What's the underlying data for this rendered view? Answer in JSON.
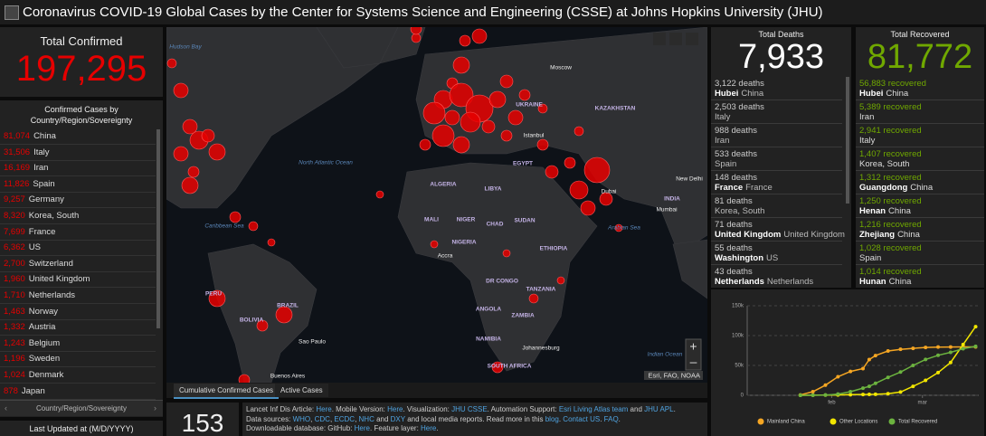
{
  "header": {
    "title": "Coronavirus COVID-19 Global Cases by the Center for Systems Science and Engineering (CSSE) at Johns Hopkins University (JHU)"
  },
  "confirmed": {
    "label": "Total Confirmed",
    "value": "197,295",
    "list_title": "Confirmed Cases by Country/Region/Sovereignty",
    "rows": [
      {
        "count": "81,074",
        "name": "China"
      },
      {
        "count": "31,506",
        "name": "Italy"
      },
      {
        "count": "16,169",
        "name": "Iran"
      },
      {
        "count": "11,826",
        "name": "Spain"
      },
      {
        "count": "9,257",
        "name": "Germany"
      },
      {
        "count": "8,320",
        "name": "Korea, South"
      },
      {
        "count": "7,699",
        "name": "France"
      },
      {
        "count": "6,362",
        "name": "US"
      },
      {
        "count": "2,700",
        "name": "Switzerland"
      },
      {
        "count": "1,960",
        "name": "United Kingdom"
      },
      {
        "count": "1,710",
        "name": "Netherlands"
      },
      {
        "count": "1,463",
        "name": "Norway"
      },
      {
        "count": "1,332",
        "name": "Austria"
      },
      {
        "count": "1,243",
        "name": "Belgium"
      },
      {
        "count": "1,196",
        "name": "Sweden"
      },
      {
        "count": "1,024",
        "name": "Denmark"
      },
      {
        "count": "878",
        "name": "Japan"
      }
    ],
    "tab": "Country/Region/Sovereignty"
  },
  "last_updated": "Last Updated at (M/D/YYYY)",
  "map": {
    "labels": [
      "Hudson Bay",
      "Moscow",
      "North Atlantic Ocean",
      "Arabian Sea",
      "Indian Ocean",
      "BRAZIL",
      "Sao Paulo",
      "Johannesburg",
      "Accra",
      "Buenos Aires",
      "Dubai",
      "INDIA",
      "New Delhi",
      "Mumbai",
      "KAZAKHSTAN",
      "UKRAINE",
      "LIBYA",
      "ALGERIA",
      "MALI",
      "NIGER",
      "CHAD",
      "SUDAN",
      "NIGERIA",
      "ETHIOPIA",
      "DR CONGO",
      "TANZANIA",
      "ANGOLA",
      "ZAMBIA",
      "NAMIBIA",
      "SOUTH AFRICA",
      "PERU",
      "BOLIVIA",
      "Caribbean Sea",
      "Istanbul",
      "EGYPT"
    ],
    "tabs": [
      "Cumulative Confirmed Cases",
      "Active Cases"
    ],
    "attribution": "Esri, FAO, NOAA",
    "zoom_in": "+",
    "zoom_out": "–"
  },
  "countries_count": "153",
  "info": {
    "lines": [
      [
        {
          "text": "Lancet Inf Dis Article: "
        },
        {
          "text": "Here",
          "link": true
        },
        {
          "text": ". Mobile Version: "
        },
        {
          "text": "Here",
          "link": true
        },
        {
          "text": ". Visualization: "
        },
        {
          "text": "JHU CSSE",
          "link": true
        },
        {
          "text": ". Automation Support: "
        },
        {
          "text": "Esri Living Atlas team",
          "link": true
        },
        {
          "text": " and "
        },
        {
          "text": "JHU APL",
          "link": true
        },
        {
          "text": "."
        }
      ],
      [
        {
          "text": "Data sources: "
        },
        {
          "text": "WHO",
          "link": true
        },
        {
          "text": ", "
        },
        {
          "text": "CDC",
          "link": true
        },
        {
          "text": ", "
        },
        {
          "text": "ECDC",
          "link": true
        },
        {
          "text": ", "
        },
        {
          "text": "NHC",
          "link": true
        },
        {
          "text": " and "
        },
        {
          "text": "DXY",
          "link": true
        },
        {
          "text": " and local media reports. Read more in this "
        },
        {
          "text": "blog",
          "link": true
        },
        {
          "text": ". "
        },
        {
          "text": "Contact US",
          "link": true
        },
        {
          "text": ". "
        },
        {
          "text": "FAQ",
          "link": true
        },
        {
          "text": "."
        }
      ],
      [
        {
          "text": "Downloadable database: GitHub: "
        },
        {
          "text": "Here",
          "link": true
        },
        {
          "text": ". Feature layer: "
        },
        {
          "text": "Here",
          "link": true
        },
        {
          "text": "."
        }
      ]
    ]
  },
  "deaths": {
    "label": "Total Deaths",
    "value": "7,933",
    "rows": [
      {
        "count": "3,122 deaths",
        "place": "Hubei",
        "country": "China"
      },
      {
        "count": "2,503 deaths",
        "country": "Italy"
      },
      {
        "count": "988 deaths",
        "country": "Iran"
      },
      {
        "count": "533 deaths",
        "country": "Spain"
      },
      {
        "count": "148 deaths",
        "place": "France",
        "country": "France"
      },
      {
        "count": "81 deaths",
        "country": "Korea, South"
      },
      {
        "count": "71 deaths",
        "place": "United Kingdom",
        "country": "United Kingdom"
      },
      {
        "count": "55 deaths",
        "place": "Washington",
        "country": "US"
      },
      {
        "count": "43 deaths",
        "place": "Netherlands",
        "country": "Netherlands"
      }
    ]
  },
  "recovered": {
    "label": "Total Recovered",
    "value": "81,772",
    "rows": [
      {
        "count": "56,883 recovered",
        "place": "Hubei",
        "country": "China"
      },
      {
        "count": "5,389 recovered",
        "country": "Iran"
      },
      {
        "count": "2,941 recovered",
        "country": "Italy"
      },
      {
        "count": "1,407 recovered",
        "country": "Korea, South"
      },
      {
        "count": "1,312 recovered",
        "place": "Guangdong",
        "country": "China"
      },
      {
        "count": "1,250 recovered",
        "place": "Henan",
        "country": "China"
      },
      {
        "count": "1,216 recovered",
        "place": "Zhejiang",
        "country": "China"
      },
      {
        "count": "1,028 recovered",
        "country": "Spain"
      },
      {
        "count": "1,014 recovered",
        "place": "Hunan",
        "country": "China"
      }
    ]
  },
  "chart": {
    "type": "line",
    "x": [
      0,
      4,
      8,
      12,
      16,
      20,
      22,
      24,
      28,
      32,
      36,
      40,
      44,
      48,
      52,
      56
    ],
    "xlim": [
      -17,
      57
    ],
    "xticks": [
      {
        "value": 10,
        "label": "feb"
      },
      {
        "value": 39,
        "label": "mar"
      }
    ],
    "ylim": [
      0,
      150000
    ],
    "yticks": [
      {
        "value": 0,
        "label": "0"
      },
      {
        "value": 50000,
        "label": "50k"
      },
      {
        "value": 100000,
        "label": "100k"
      },
      {
        "value": 150000,
        "label": "150k"
      }
    ],
    "grid": true,
    "series": [
      {
        "name": "Mainland China",
        "color": "#f5a623",
        "values": [
          548,
          6000,
          17000,
          31000,
          40000,
          44700,
          59800,
          66500,
          74200,
          77000,
          78600,
          80200,
          80800,
          80900,
          81000,
          81100
        ]
      },
      {
        "name": "Other Locations",
        "color": "#f2e600",
        "values": [
          7,
          100,
          300,
          600,
          1000,
          1300,
          1500,
          1700,
          2700,
          5500,
          15000,
          25000,
          38000,
          55000,
          85000,
          115000
        ]
      },
      {
        "name": "Total Recovered",
        "color": "#6cb33f",
        "values": [
          28,
          100,
          500,
          2000,
          6000,
          12000,
          15000,
          20000,
          30000,
          39000,
          50000,
          60000,
          67000,
          72000,
          78000,
          82000
        ]
      }
    ]
  }
}
